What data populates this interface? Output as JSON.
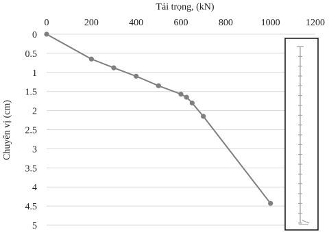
{
  "chart_data": {
    "type": "line",
    "xlabel": "Tải trọng, (kN)",
    "ylabel": "Chuyển vị (cm)",
    "xlim": [
      0,
      1200
    ],
    "ylim": [
      0,
      5
    ],
    "y_inverted": true,
    "x_axis_position": "top",
    "grid": true,
    "xticks": [
      "0",
      "200",
      "400",
      "600",
      "800",
      "1000",
      "1200"
    ],
    "yticks": [
      "0",
      "0.5",
      "1",
      "1.5",
      "2",
      "2.5",
      "3",
      "3.5",
      "4",
      "4.5",
      "5"
    ],
    "series": [
      {
        "x": [
          0,
          200,
          300,
          400,
          500,
          600,
          625,
          650,
          700,
          1000
        ],
        "y": [
          0,
          0.65,
          0.88,
          1.1,
          1.35,
          1.57,
          1.65,
          1.8,
          2.15,
          4.43
        ],
        "color": "#7f7f7f"
      }
    ],
    "inset": {
      "icon": "pile-diagram-icon",
      "color": "#9a9a9a"
    }
  }
}
